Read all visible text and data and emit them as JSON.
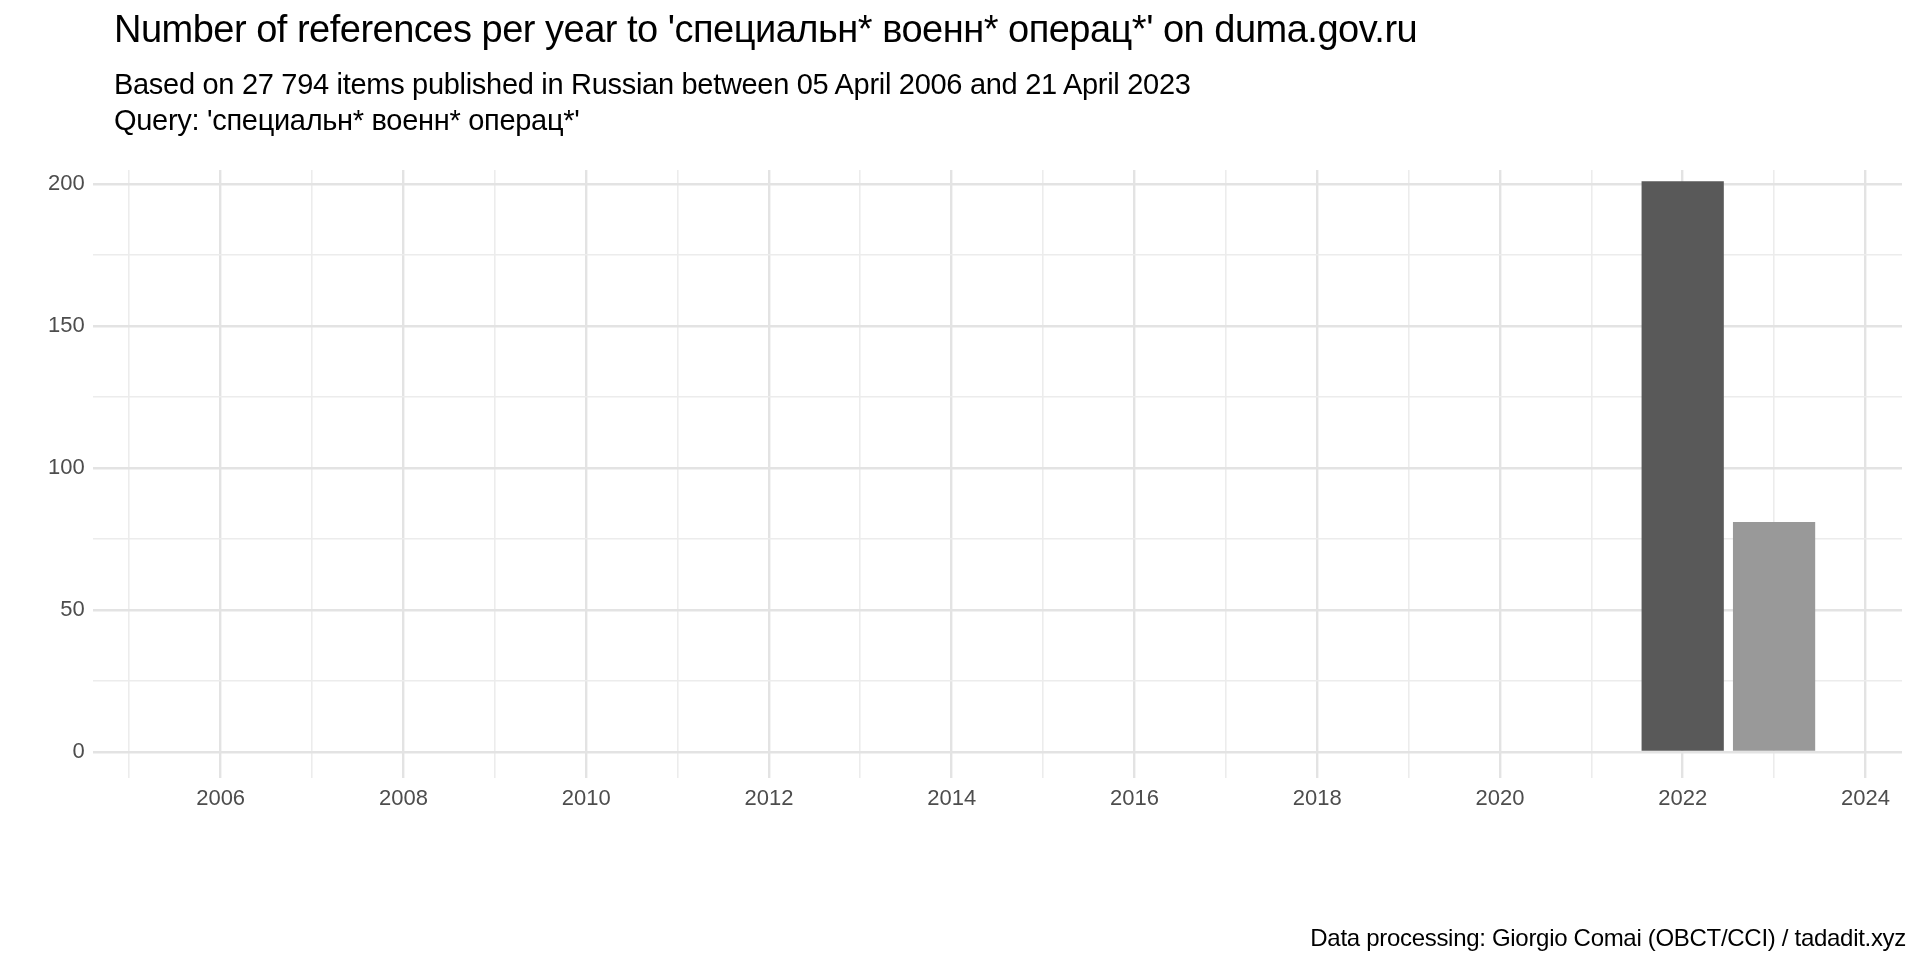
{
  "chart_data": {
    "type": "bar",
    "title": "Number of references per year to 'специальн* военн* операц*' on duma.gov.ru",
    "subtitle": "Based on 27 794 items published in Russian between 05 April 2006 and 21 April 2023\nQuery: 'специальн* военн* операц*'",
    "x": [
      2022,
      2023
    ],
    "values": [
      201,
      81
    ],
    "colors": [
      "#595959",
      "#999999"
    ],
    "xlim": [
      2004.6,
      2024.4
    ],
    "xticks": [
      {
        "value": 2005,
        "label": null
      },
      2006,
      {
        "value": 2007,
        "label": null
      },
      2008,
      {
        "value": 2009,
        "label": null
      },
      2010,
      {
        "value": 2011,
        "label": null
      },
      2012,
      {
        "value": 2013,
        "label": null
      },
      2014,
      {
        "value": 2015,
        "label": null
      },
      2016,
      {
        "value": 2017,
        "label": null
      },
      2018,
      {
        "value": 2019,
        "label": null
      },
      2020,
      {
        "value": 2021,
        "label": null
      },
      2022,
      {
        "value": 2023,
        "label": null
      },
      2024
    ],
    "ylim": [
      -9,
      205
    ],
    "yticks": [
      0,
      {
        "value": 25,
        "label": null
      },
      50,
      {
        "value": 75,
        "label": null
      },
      100,
      {
        "value": 125,
        "label": null
      },
      150,
      {
        "value": 175,
        "label": null
      },
      200
    ],
    "grid": true,
    "legend": false,
    "annotations": [
      "Data processing: Giorgio Comai (OBCT/CCI) / tadadit.xyz"
    ]
  }
}
